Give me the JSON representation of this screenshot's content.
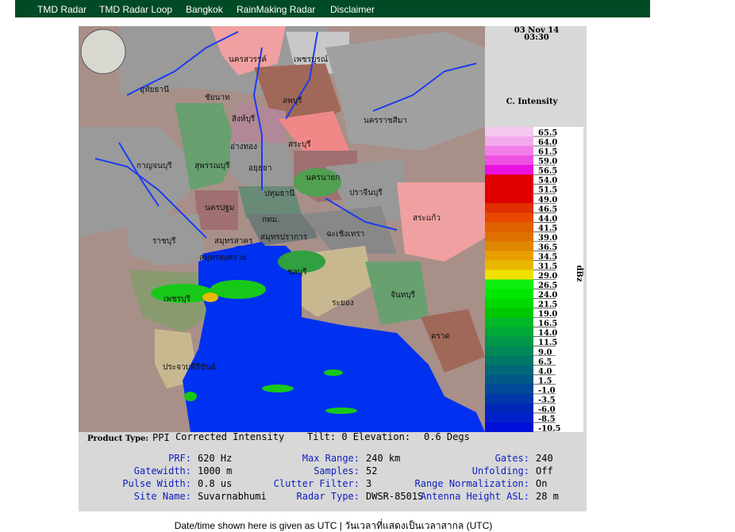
{
  "nav": [
    "TMD Radar",
    "TMD Radar Loop",
    "Bangkok",
    "RainMaking Radar",
    "Disclaimer"
  ],
  "radar": {
    "date": "03 Nov 14",
    "time": "03:30",
    "scale_title": "C. Intensity",
    "unit": "dBz",
    "scale": [
      {
        "label": "65.5",
        "color": "#f6c8f0"
      },
      {
        "label": "64.0",
        "color": "#f4a8ec"
      },
      {
        "label": "61.5",
        "color": "#f080e8"
      },
      {
        "label": "59.0",
        "color": "#ee50e2"
      },
      {
        "label": "56.5",
        "color": "#ea10e0"
      },
      {
        "label": "54.0",
        "color": "#e00000"
      },
      {
        "label": "51.5",
        "color": "#e00000"
      },
      {
        "label": "49.0",
        "color": "#e00000"
      },
      {
        "label": "46.5",
        "color": "#e03000"
      },
      {
        "label": "44.0",
        "color": "#e84800"
      },
      {
        "label": "41.5",
        "color": "#e06000"
      },
      {
        "label": "39.0",
        "color": "#e07000"
      },
      {
        "label": "36.5",
        "color": "#e08800"
      },
      {
        "label": "34.5",
        "color": "#e8a000"
      },
      {
        "label": "31.5",
        "color": "#e8b800"
      },
      {
        "label": "29.0",
        "color": "#f0e000"
      },
      {
        "label": "26.5",
        "color": "#10f010"
      },
      {
        "label": "24.0",
        "color": "#00e800"
      },
      {
        "label": "21.5",
        "color": "#00d800"
      },
      {
        "label": "19.0",
        "color": "#00c800"
      },
      {
        "label": "16.5",
        "color": "#00b828"
      },
      {
        "label": "14.0",
        "color": "#00a838"
      },
      {
        "label": "11.5",
        "color": "#009848"
      },
      {
        "label": "9.0",
        "color": "#008858"
      },
      {
        "label": "6.5",
        "color": "#007868"
      },
      {
        "label": "4.0",
        "color": "#006878"
      },
      {
        "label": "1.5",
        "color": "#005888"
      },
      {
        "label": "-1.0",
        "color": "#004898"
      },
      {
        "label": "-3.5",
        "color": "#0038a8"
      },
      {
        "label": "-6.0",
        "color": "#0028b8"
      },
      {
        "label": "-8.5",
        "color": "#0020c8"
      },
      {
        "label": "-10.5",
        "color": "#0010d8"
      }
    ],
    "map_labels": [
      "นครสวรรค์",
      "เพชรบูรณ์",
      "อุทัยธานี",
      "ชัยนาท",
      "ลพบุรี",
      "สิงห์บุรี",
      "นครราชสีมา",
      "อ่างทอง",
      "สระบุรี",
      "กาญจนบุรี",
      "สุพรรณบุรี",
      "อยุธยา",
      "นครนายก",
      "ปทุมธานี",
      "ปราจีนบุรี",
      "นครปฐม",
      "กทม.",
      "สระแก้ว",
      "ราชบุรี",
      "สมุทรสาคร",
      "สมุทรปราการ",
      "ฉะเชิงเทรา",
      "สมุทรสงคราม",
      "ชลบุรี",
      "เพชรบุรี",
      "จันทบุรี",
      "ระยอง",
      "ตราด",
      "ประจวบคีรีขันธ์"
    ]
  },
  "info": {
    "product_type_label": "Product Type:",
    "product_type": "PPI",
    "product_name": "Corrected Intensity",
    "tilt": "Tilt: 0 Elevation:",
    "elevation": "0.6 Degs",
    "fields": [
      [
        {
          "label": "PRF:",
          "value": "620 Hz"
        },
        {
          "label": "Max Range:",
          "value": "240 km"
        },
        {
          "label": "Gates:",
          "value": "240"
        }
      ],
      [
        {
          "label": "Gatewidth:",
          "value": "1000 m"
        },
        {
          "label": "Samples:",
          "value": "52"
        },
        {
          "label": "Unfolding:",
          "value": "Off"
        }
      ],
      [
        {
          "label": "Pulse Width:",
          "value": "0.8 us"
        },
        {
          "label": "Clutter Filter:",
          "value": "3"
        },
        {
          "label": "Range Normalization:",
          "value": "On"
        }
      ],
      [
        {
          "label": "Site Name:",
          "value": "Suvarnabhumi"
        },
        {
          "label": "Radar Type:",
          "value": "DWSR-8501S"
        },
        {
          "label": "Antenna Height ASL:",
          "value": "28 m"
        }
      ]
    ]
  },
  "footer": "Date/time shown here is given as UTC | วันเวลาที่แสดงเป็นเวลาสากล (UTC)"
}
